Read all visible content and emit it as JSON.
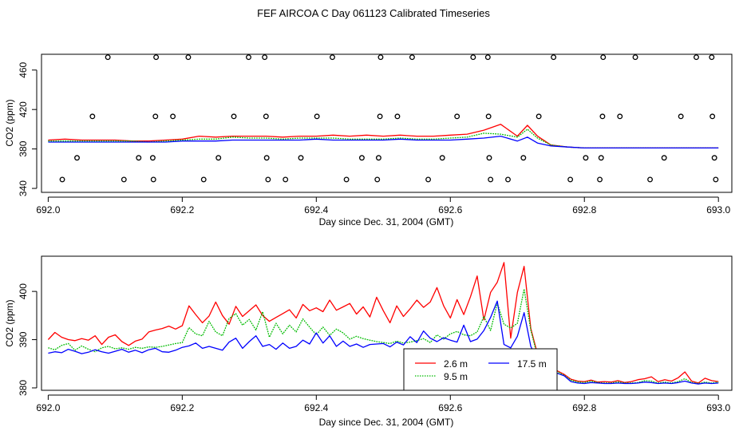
{
  "page_title": "FEF AIRCOA C  Day 061123  Calibrated Timeseries",
  "colors": {
    "2.6m": "#ff0000",
    "9.5m": "#00bb00",
    "17.5m": "#0000ff",
    "frame": "#000000"
  },
  "chart_data": [
    {
      "type": "scatter",
      "title": "",
      "xlabel": "Day since Dec. 31, 2004 (GMT)",
      "ylabel": "CO2 (ppm)",
      "xlim": [
        691.99,
        693.02
      ],
      "ylim": [
        336,
        476
      ],
      "x_ticks": [
        692.0,
        692.2,
        692.4,
        692.6,
        692.8,
        693.0
      ],
      "x_tick_labels": [
        "692.0",
        "692.2",
        "692.4",
        "692.6",
        "692.8",
        "693.0"
      ],
      "y_ticks": [
        340,
        380,
        420,
        460
      ],
      "y_tick_labels": [
        "340",
        "380",
        "420",
        "460"
      ],
      "point_series": {
        "name": "calibration points",
        "points": [
          [
            692.089,
            473
          ],
          [
            692.161,
            473
          ],
          [
            692.209,
            473
          ],
          [
            692.299,
            473
          ],
          [
            692.323,
            473
          ],
          [
            692.424,
            473
          ],
          [
            692.496,
            473
          ],
          [
            692.543,
            473
          ],
          [
            692.634,
            473
          ],
          [
            692.656,
            473
          ],
          [
            692.754,
            473
          ],
          [
            692.828,
            473
          ],
          [
            692.876,
            473
          ],
          [
            692.967,
            473
          ],
          [
            692.99,
            473
          ],
          [
            692.066,
            413
          ],
          [
            692.16,
            413
          ],
          [
            692.186,
            413
          ],
          [
            692.277,
            413
          ],
          [
            692.325,
            413
          ],
          [
            692.401,
            413
          ],
          [
            692.495,
            413
          ],
          [
            692.521,
            413
          ],
          [
            692.61,
            413
          ],
          [
            692.657,
            413
          ],
          [
            692.732,
            413
          ],
          [
            692.827,
            413
          ],
          [
            692.853,
            413
          ],
          [
            692.944,
            413
          ],
          [
            692.991,
            413
          ],
          [
            692.043,
            371
          ],
          [
            692.135,
            371
          ],
          [
            692.156,
            371
          ],
          [
            692.254,
            371
          ],
          [
            692.326,
            371
          ],
          [
            692.377,
            371
          ],
          [
            692.468,
            371
          ],
          [
            692.493,
            371
          ],
          [
            692.588,
            371
          ],
          [
            692.658,
            371
          ],
          [
            692.709,
            371
          ],
          [
            692.802,
            371
          ],
          [
            692.825,
            371
          ],
          [
            692.919,
            371
          ],
          [
            692.994,
            371
          ],
          [
            692.021,
            349
          ],
          [
            692.113,
            349
          ],
          [
            692.157,
            349
          ],
          [
            692.232,
            349
          ],
          [
            692.328,
            349
          ],
          [
            692.354,
            349
          ],
          [
            692.445,
            349
          ],
          [
            692.491,
            349
          ],
          [
            692.567,
            349
          ],
          [
            692.66,
            349
          ],
          [
            692.686,
            349
          ],
          [
            692.779,
            349
          ],
          [
            692.823,
            349
          ],
          [
            692.898,
            349
          ],
          [
            692.996,
            349
          ]
        ]
      },
      "line_series_names": [
        "2.6 m",
        "9.5 m",
        "17.5 m"
      ],
      "x": [
        692.0,
        692.025,
        692.05,
        692.075,
        692.1,
        692.125,
        692.15,
        692.175,
        692.2,
        692.225,
        692.25,
        692.275,
        692.3,
        692.325,
        692.35,
        692.375,
        692.4,
        692.425,
        692.45,
        692.475,
        692.5,
        692.525,
        692.55,
        692.575,
        692.6,
        692.625,
        692.65,
        692.675,
        692.7,
        692.715,
        692.73,
        692.75,
        692.775,
        692.8,
        692.85,
        692.9,
        692.95,
        693.0
      ],
      "series": [
        {
          "name": "2.6 m",
          "values": [
            389,
            390,
            389,
            389,
            389,
            388,
            388,
            389,
            390,
            393,
            392,
            393,
            393,
            393,
            392,
            393,
            393,
            394,
            393,
            394,
            393,
            394,
            393,
            393,
            394,
            395,
            399,
            405,
            393,
            404,
            393,
            384,
            382,
            381,
            381,
            381,
            381,
            381
          ]
        },
        {
          "name": "9.5 m",
          "values": [
            388,
            388,
            388,
            388,
            388,
            388,
            387,
            388,
            389,
            390,
            390,
            392,
            391,
            391,
            390,
            391,
            391,
            391,
            390,
            390,
            390,
            391,
            390,
            390,
            391,
            392,
            396,
            395,
            392,
            400,
            391,
            384,
            382,
            381,
            381,
            381,
            381,
            381
          ]
        },
        {
          "name": "17.5 m",
          "values": [
            387,
            387,
            387,
            387,
            387,
            387,
            387,
            387,
            388,
            388,
            388,
            389,
            389,
            389,
            389,
            389,
            390,
            389,
            389,
            389,
            389,
            390,
            389,
            389,
            389,
            390,
            391,
            393,
            388,
            392,
            386,
            383,
            382,
            381,
            381,
            381,
            381,
            381
          ]
        }
      ]
    },
    {
      "type": "line",
      "title": "",
      "xlabel": "Day since Dec. 31, 2004 (GMT)",
      "ylabel": "CO2 (ppm)",
      "xlim": [
        691.99,
        693.02
      ],
      "ylim": [
        379.5,
        407.3
      ],
      "x_ticks": [
        692.0,
        692.2,
        692.4,
        692.6,
        692.8,
        693.0
      ],
      "x_tick_labels": [
        "692.0",
        "692.2",
        "692.4",
        "692.6",
        "692.8",
        "693.0"
      ],
      "y_ticks": [
        380,
        390,
        400
      ],
      "y_tick_labels": [
        "380",
        "390",
        "400"
      ],
      "legend": {
        "placement": "bottom-center",
        "entries": [
          {
            "label": "2.6 m",
            "color": "#ff0000",
            "style": "solid"
          },
          {
            "label": "9.5 m",
            "color": "#00bb00",
            "style": "dotted"
          },
          {
            "label": "17.5 m",
            "color": "#0000ff",
            "style": "solid"
          }
        ]
      },
      "x": [
        692.0,
        692.01,
        692.02,
        692.03,
        692.04,
        692.05,
        692.06,
        692.07,
        692.08,
        692.09,
        692.1,
        692.11,
        692.12,
        692.13,
        692.14,
        692.15,
        692.16,
        692.17,
        692.18,
        692.19,
        692.2,
        692.21,
        692.22,
        692.23,
        692.24,
        692.25,
        692.26,
        692.27,
        692.28,
        692.29,
        692.3,
        692.31,
        692.32,
        692.33,
        692.34,
        692.35,
        692.36,
        692.37,
        692.38,
        692.39,
        692.4,
        692.41,
        692.42,
        692.43,
        692.44,
        692.45,
        692.46,
        692.47,
        692.48,
        692.49,
        692.5,
        692.51,
        692.52,
        692.53,
        692.54,
        692.55,
        692.56,
        692.57,
        692.58,
        692.59,
        692.6,
        692.61,
        692.62,
        692.63,
        692.64,
        692.65,
        692.66,
        692.67,
        692.68,
        692.69,
        692.7,
        692.71,
        692.72,
        692.73,
        692.74,
        692.75,
        692.76,
        692.77,
        692.78,
        692.79,
        692.8,
        692.81,
        692.82,
        692.83,
        692.84,
        692.85,
        692.86,
        692.87,
        692.88,
        692.89,
        692.9,
        692.91,
        692.92,
        692.93,
        692.94,
        692.95,
        692.96,
        692.97,
        692.98,
        692.99,
        693.0
      ],
      "series": [
        {
          "name": "2.6 m",
          "values": [
            390.0,
            391.5,
            390.5,
            390.0,
            389.8,
            390.2,
            389.9,
            390.8,
            389.0,
            390.5,
            391.0,
            389.6,
            388.8,
            389.7,
            390.1,
            391.6,
            392.0,
            392.3,
            392.8,
            392.2,
            392.9,
            397.0,
            395.2,
            393.5,
            394.9,
            397.8,
            395.0,
            393.2,
            396.9,
            394.8,
            396.0,
            397.2,
            395.0,
            393.8,
            394.6,
            395.4,
            396.2,
            394.5,
            397.3,
            396.0,
            396.6,
            395.8,
            398.2,
            396.1,
            396.8,
            397.5,
            395.3,
            396.8,
            394.7,
            398.8,
            396.0,
            393.5,
            397.0,
            394.8,
            396.4,
            398.2,
            396.7,
            397.8,
            400.8,
            397.0,
            394.5,
            398.3,
            395.2,
            398.9,
            403.2,
            394.1,
            399.8,
            401.9,
            406.0,
            390.3,
            399.8,
            405.2,
            392.3,
            387.0,
            384.2,
            384.4,
            383.5,
            382.8,
            381.8,
            381.4,
            381.3,
            381.6,
            381.2,
            381.3,
            381.2,
            381.5,
            381.1,
            381.3,
            381.7,
            381.9,
            382.3,
            381.3,
            381.7,
            381.4,
            382.1,
            383.3,
            381.4,
            381.0,
            382.0,
            381.5,
            381.3
          ]
        },
        {
          "name": "9.5 m",
          "values": [
            388.3,
            387.9,
            388.8,
            389.2,
            387.8,
            388.7,
            388.0,
            387.5,
            388.3,
            388.6,
            388.1,
            388.3,
            388.0,
            388.4,
            388.2,
            388.5,
            388.4,
            388.6,
            388.9,
            389.2,
            389.4,
            392.5,
            391.2,
            390.8,
            393.8,
            391.6,
            390.8,
            394.4,
            395.4,
            393.0,
            394.2,
            392.0,
            395.8,
            390.5,
            393.4,
            391.2,
            393.0,
            391.6,
            394.3,
            392.6,
            391.0,
            392.6,
            390.9,
            392.2,
            391.4,
            390.1,
            390.7,
            390.2,
            389.9,
            389.6,
            389.4,
            389.2,
            389.7,
            389.3,
            389.5,
            389.8,
            390.2,
            389.4,
            391.0,
            390.1,
            391.2,
            391.7,
            391.0,
            390.8,
            391.6,
            394.8,
            391.9,
            397.6,
            393.2,
            392.4,
            393.4,
            400.5,
            392.0,
            386.5,
            384.5,
            384.1,
            383.3,
            382.6,
            381.6,
            381.2,
            381.1,
            381.4,
            381.1,
            381.0,
            381.0,
            381.2,
            381.0,
            381.0,
            381.1,
            381.5,
            381.4,
            381.0,
            381.2,
            381.0,
            381.3,
            381.9,
            381.1,
            380.9,
            381.2,
            381.0,
            381.2
          ]
        },
        {
          "name": "17.5 m",
          "values": [
            387.2,
            387.5,
            387.3,
            388.0,
            387.6,
            387.1,
            387.4,
            387.9,
            387.5,
            387.2,
            387.6,
            388.0,
            387.4,
            387.8,
            387.3,
            387.9,
            388.2,
            387.5,
            387.4,
            387.8,
            388.4,
            388.7,
            389.3,
            388.2,
            388.6,
            388.2,
            387.8,
            389.5,
            390.3,
            388.2,
            389.6,
            390.8,
            388.6,
            389.0,
            388.0,
            389.3,
            388.2,
            388.6,
            389.9,
            389.1,
            391.4,
            389.3,
            390.8,
            388.6,
            389.7,
            388.6,
            389.1,
            388.4,
            389.0,
            389.1,
            389.2,
            388.5,
            389.5,
            388.9,
            390.6,
            389.4,
            391.8,
            390.3,
            389.6,
            390.4,
            389.9,
            389.5,
            393.0,
            389.6,
            390.1,
            391.9,
            394.6,
            398.0,
            389.0,
            388.3,
            390.7,
            395.6,
            388.6,
            386.0,
            384.2,
            383.8,
            383.0,
            382.5,
            381.3,
            381.0,
            380.9,
            381.1,
            381.0,
            380.9,
            380.9,
            381.0,
            380.9,
            380.9,
            381.0,
            381.2,
            381.1,
            380.9,
            381.0,
            380.9,
            381.1,
            381.4,
            381.0,
            380.8,
            381.0,
            380.9,
            381.0
          ]
        }
      ]
    }
  ]
}
